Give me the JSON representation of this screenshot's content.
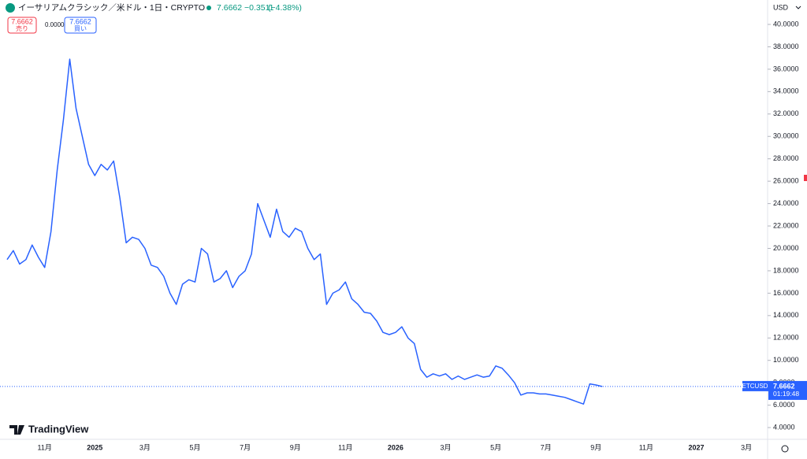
{
  "toolbar": {
    "title": "イーサリアムクラシック／米ドル・1日・CRYPTO",
    "last": "7.6662",
    "change": "−0.3511",
    "change_pct": "(−4.38%)",
    "sell_price": "7.6662",
    "sell": "売り",
    "spread": "0.0000",
    "buy_price": "7.6662",
    "buy": "買い",
    "currency": "USD"
  },
  "logo": "TradingView",
  "chart_data": {
    "type": "line",
    "color": "#2962ff",
    "categories": [
      null,
      null,
      null,
      null,
      null,
      null,
      "11月",
      null,
      null,
      null,
      null,
      null,
      null,
      null,
      "2025",
      null,
      null,
      null,
      null,
      null,
      null,
      null,
      "3月",
      null,
      null,
      null,
      null,
      null,
      null,
      null,
      "5月",
      null,
      null,
      null,
      null,
      null,
      null,
      null,
      "7月",
      null,
      null,
      null,
      null,
      null,
      null,
      null,
      "9月",
      null,
      null,
      null,
      null,
      null,
      null,
      null,
      "11月",
      null,
      null,
      null,
      null,
      null,
      null,
      null,
      "2026",
      null,
      null,
      null,
      null,
      null,
      null,
      null,
      "3月",
      null,
      null,
      null,
      null,
      null,
      null,
      null,
      "5月",
      null,
      null,
      null,
      null,
      null,
      null,
      null,
      "7月",
      null,
      null,
      null,
      null,
      null,
      null,
      null,
      "9月",
      null,
      null,
      null,
      null,
      null,
      null,
      null,
      "11月",
      null,
      null,
      null,
      null,
      null,
      null,
      null,
      "2027",
      null,
      null,
      null,
      null,
      null,
      null,
      null,
      "3月",
      null,
      null
    ],
    "values": [
      19.0,
      19.8,
      18.6,
      19.0,
      20.3,
      19.2,
      18.3,
      21.5,
      27.0,
      31.5,
      36.9,
      32.5,
      30.0,
      27.5,
      26.5,
      27.5,
      27.0,
      27.8,
      24.5,
      20.5,
      21.0,
      20.8,
      20.0,
      18.5,
      18.3,
      17.5,
      16.0,
      15.0,
      16.8,
      17.2,
      17.0,
      20.0,
      19.5,
      17.0,
      17.3,
      18.0,
      16.5,
      17.5,
      18.0,
      19.5,
      24.0,
      22.5,
      21.0,
      23.5,
      21.5,
      21.0,
      21.8,
      21.5,
      20.0,
      19.0,
      19.5,
      15.0,
      16.0,
      16.3,
      17.0,
      15.5,
      15.0,
      14.3,
      14.2,
      13.5,
      12.5,
      12.3,
      12.5,
      13.0,
      12.0,
      11.5,
      9.2,
      8.5,
      8.8,
      8.6,
      8.8,
      8.3,
      8.6,
      8.3,
      8.5,
      8.7,
      8.5,
      8.6,
      9.5,
      9.3,
      8.7,
      8.0,
      6.9,
      7.1,
      7.1,
      7.0,
      7.0,
      6.9,
      6.8,
      6.7,
      6.5,
      6.3,
      6.1,
      7.9,
      7.8,
      7.6662,
      null,
      null,
      null,
      null,
      null,
      null,
      null,
      null,
      null,
      null,
      null,
      null,
      null,
      null,
      null,
      null,
      null,
      null,
      null,
      null,
      null,
      null,
      null,
      null,
      null
    ],
    "ylim": [
      2.95,
      42.18
    ],
    "yticks": [
      {
        "value": 4,
        "label": "4.0000"
      },
      {
        "value": 6,
        "label": "6.0000"
      },
      {
        "value": 8,
        "label": "8.0000"
      },
      {
        "value": 10,
        "label": "10.0000"
      },
      {
        "value": 12,
        "label": "12.0000"
      },
      {
        "value": 14,
        "label": "14.0000"
      },
      {
        "value": 16,
        "label": "16.0000"
      },
      {
        "value": 18,
        "label": "18.0000"
      },
      {
        "value": 20,
        "label": "20.0000"
      },
      {
        "value": 22,
        "label": "22.0000"
      },
      {
        "value": 24,
        "label": "24.0000"
      },
      {
        "value": 26,
        "label": "26.0000"
      },
      {
        "value": 28,
        "label": "28.0000"
      },
      {
        "value": 30,
        "label": "30.0000"
      },
      {
        "value": 32,
        "label": "32.0000"
      },
      {
        "value": 34,
        "label": "34.0000"
      },
      {
        "value": 36,
        "label": "36.0000"
      },
      {
        "value": 38,
        "label": "38.0000"
      },
      {
        "value": 40,
        "label": "40.0000"
      }
    ],
    "bold_ticks": [
      "2025",
      "2026",
      "2027"
    ],
    "grid": false,
    "price_label": {
      "symbol": "ETCUSD",
      "price": "7.6662",
      "countdown": "01:19:48"
    }
  }
}
